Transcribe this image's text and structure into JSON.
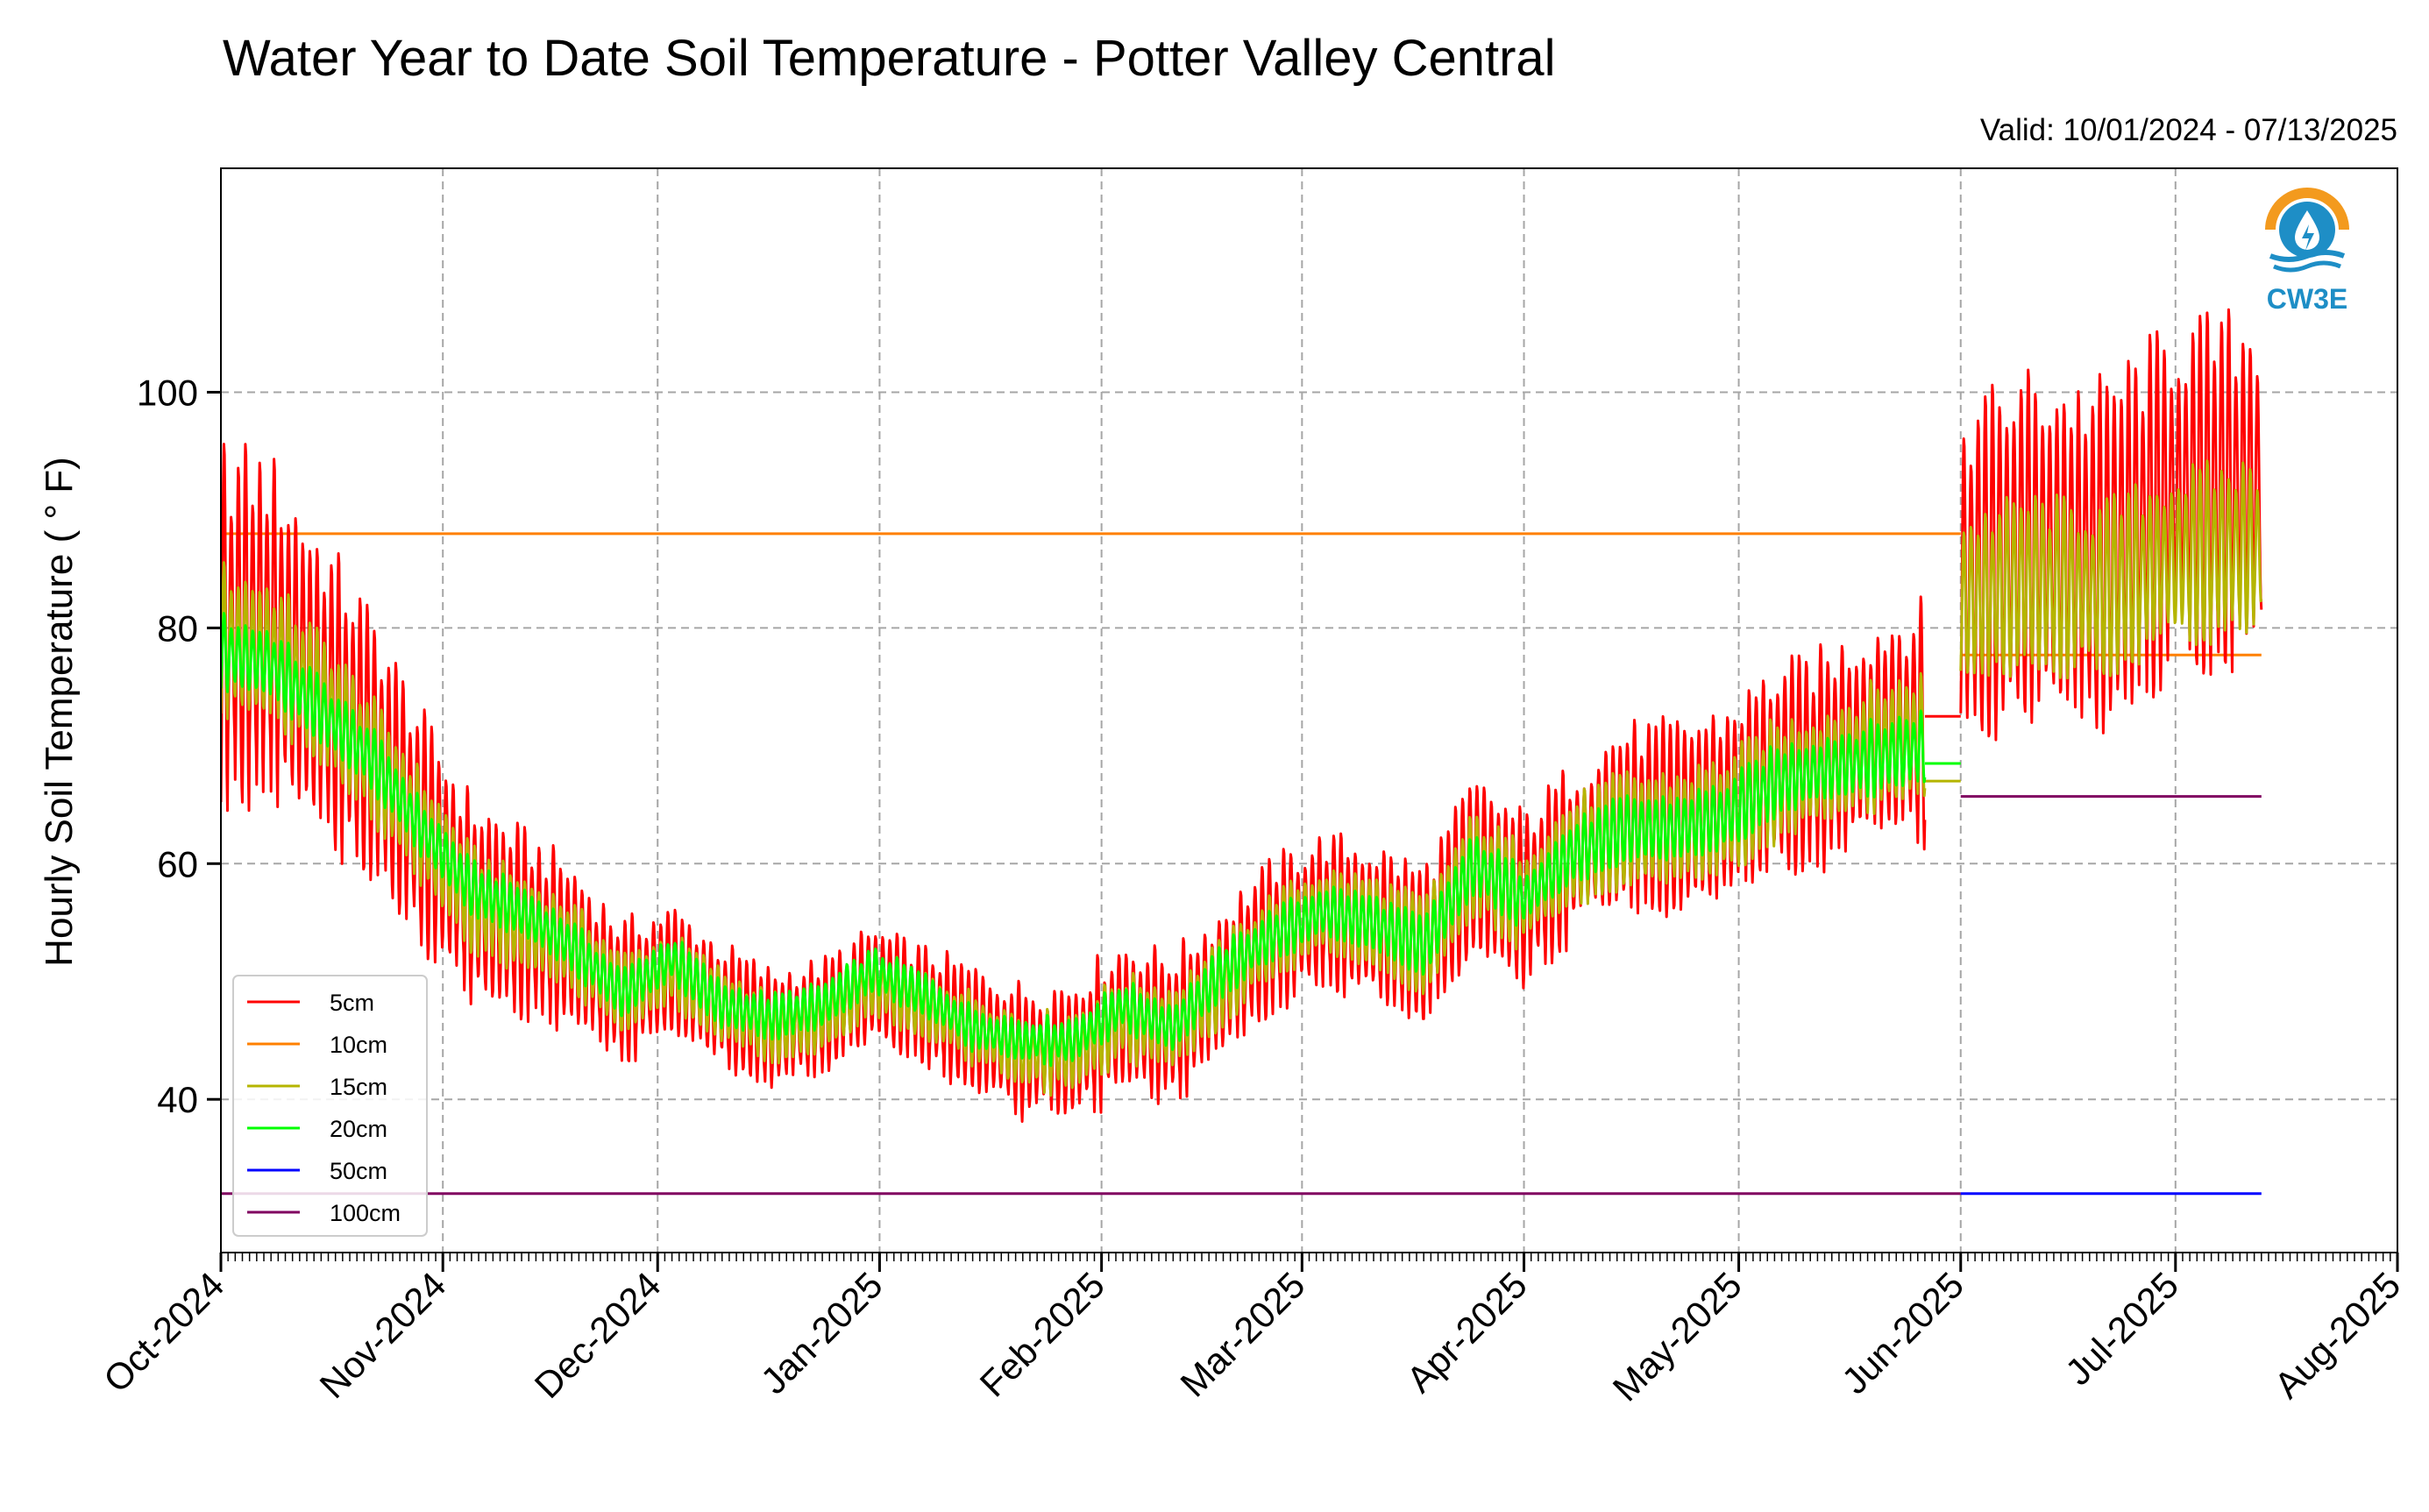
{
  "chart_data": {
    "type": "line",
    "title": "Water Year to Date Soil Temperature - Potter Valley Central",
    "subtitle": "Valid: 10/01/2024 - 07/13/2025",
    "xlabel": "",
    "ylabel": "Hourly Soil Temperature ( ° F)",
    "xlim": [
      "2024-10-01",
      "2025-08-01"
    ],
    "ylim": [
      27,
      119
    ],
    "yticks": [
      40,
      60,
      80,
      100
    ],
    "xticks": [
      "2024-10-01",
      "2024-11-01",
      "2024-12-01",
      "2025-01-01",
      "2025-02-01",
      "2025-03-01",
      "2025-04-01",
      "2025-05-01",
      "2025-06-01",
      "2025-07-01",
      "2025-08-01"
    ],
    "xtick_labels": [
      "Oct-2024",
      "Nov-2024",
      "Dec-2024",
      "Jan-2025",
      "Feb-2025",
      "Mar-2025",
      "Apr-2025",
      "May-2025",
      "Jun-2025",
      "Jul-2025",
      "Aug-2025"
    ],
    "grid": true,
    "legend_position": "lower-left",
    "series": [
      {
        "name": "5cm",
        "color": "#ff0000",
        "kind": "diurnal",
        "mean_points": [
          [
            "2024-10-01",
            80
          ],
          [
            "2024-10-08",
            80
          ],
          [
            "2024-10-15",
            75
          ],
          [
            "2024-10-22",
            70
          ],
          [
            "2024-10-29",
            63
          ],
          [
            "2024-11-05",
            57
          ],
          [
            "2024-11-12",
            55
          ],
          [
            "2024-11-19",
            53
          ],
          [
            "2024-11-26",
            49
          ],
          [
            "2024-12-03",
            51
          ],
          [
            "2024-12-10",
            48
          ],
          [
            "2024-12-17",
            46
          ],
          [
            "2024-12-24",
            47
          ],
          [
            "2024-12-31",
            50
          ],
          [
            "2025-01-07",
            48
          ],
          [
            "2025-01-14",
            46
          ],
          [
            "2025-01-21",
            44
          ],
          [
            "2025-01-28",
            44
          ],
          [
            "2025-02-04",
            47
          ],
          [
            "2025-02-11",
            46
          ],
          [
            "2025-02-18",
            50
          ],
          [
            "2025-02-25",
            54
          ],
          [
            "2025-03-04",
            56
          ],
          [
            "2025-03-11",
            55
          ],
          [
            "2025-03-18",
            53
          ],
          [
            "2025-03-25",
            60
          ],
          [
            "2025-04-01",
            57
          ],
          [
            "2025-04-08",
            61
          ],
          [
            "2025-04-15",
            64
          ],
          [
            "2025-04-22",
            64
          ],
          [
            "2025-04-29",
            65
          ],
          [
            "2025-05-06",
            68
          ],
          [
            "2025-05-13",
            69
          ],
          [
            "2025-05-20",
            71
          ],
          [
            "2025-05-27",
            72
          ]
        ],
        "amp_points": [
          [
            "2024-10-01",
            17
          ],
          [
            "2024-10-15",
            14
          ],
          [
            "2024-11-01",
            10
          ],
          [
            "2024-12-01",
            6
          ],
          [
            "2025-01-01",
            5
          ],
          [
            "2025-02-01",
            7
          ],
          [
            "2025-03-01",
            7
          ],
          [
            "2025-04-01",
            8
          ],
          [
            "2025-05-01",
            9
          ],
          [
            "2025-05-27",
            11
          ]
        ],
        "end": "2025-05-27",
        "segment2": {
          "start": "2025-06-01",
          "end": "2025-07-13",
          "mean_points": [
            [
              "2025-06-01",
              84
            ],
            [
              "2025-06-10",
              87
            ],
            [
              "2025-06-20",
              86
            ],
            [
              "2025-07-01",
              91
            ],
            [
              "2025-07-13",
              92
            ]
          ],
          "amp": 16
        },
        "flat_segments": [
          {
            "start": "2025-05-27",
            "end": "2025-06-01",
            "value": 72.5
          }
        ]
      },
      {
        "name": "10cm",
        "color": "#ff8000",
        "kind": "flat",
        "flat_segments": [
          {
            "start": "2024-10-01",
            "end": "2025-06-01",
            "value": 88
          },
          {
            "start": "2025-06-01",
            "end": "2025-07-13",
            "value": 77.7
          }
        ]
      },
      {
        "name": "15cm",
        "color": "#b5b500",
        "kind": "diurnal",
        "mean_points": [
          [
            "2024-10-01",
            79
          ],
          [
            "2024-10-08",
            78
          ],
          [
            "2024-10-15",
            74
          ],
          [
            "2024-10-22",
            69
          ],
          [
            "2024-10-29",
            63
          ],
          [
            "2024-11-05",
            57
          ],
          [
            "2024-11-12",
            55
          ],
          [
            "2024-11-19",
            53
          ],
          [
            "2024-11-26",
            49
          ],
          [
            "2024-12-03",
            51
          ],
          [
            "2024-12-10",
            48
          ],
          [
            "2024-12-17",
            46
          ],
          [
            "2024-12-24",
            47
          ],
          [
            "2024-12-31",
            50
          ],
          [
            "2025-01-07",
            48
          ],
          [
            "2025-01-14",
            46
          ],
          [
            "2025-01-21",
            44
          ],
          [
            "2025-01-28",
            44
          ],
          [
            "2025-02-04",
            47
          ],
          [
            "2025-02-11",
            46
          ],
          [
            "2025-02-18",
            50
          ],
          [
            "2025-02-25",
            54
          ],
          [
            "2025-03-04",
            56
          ],
          [
            "2025-03-11",
            55
          ],
          [
            "2025-03-18",
            53
          ],
          [
            "2025-03-25",
            60
          ],
          [
            "2025-04-01",
            57
          ],
          [
            "2025-04-08",
            61
          ],
          [
            "2025-04-15",
            63
          ],
          [
            "2025-04-22",
            63
          ],
          [
            "2025-04-29",
            64
          ],
          [
            "2025-05-06",
            67
          ],
          [
            "2025-05-13",
            68
          ],
          [
            "2025-05-20",
            70
          ],
          [
            "2025-05-27",
            71
          ]
        ],
        "amp_points": [
          [
            "2024-10-01",
            7
          ],
          [
            "2024-11-01",
            5
          ],
          [
            "2024-12-01",
            3.5
          ],
          [
            "2025-01-01",
            3
          ],
          [
            "2025-02-01",
            4
          ],
          [
            "2025-03-01",
            4
          ],
          [
            "2025-04-01",
            5
          ],
          [
            "2025-05-01",
            5.5
          ],
          [
            "2025-05-27",
            6
          ]
        ],
        "end": "2025-05-27",
        "segment2": {
          "start": "2025-06-01",
          "end": "2025-07-13",
          "mean_points": [
            [
              "2025-06-01",
              82
            ],
            [
              "2025-06-10",
              84
            ],
            [
              "2025-06-20",
              83
            ],
            [
              "2025-07-01",
              86
            ],
            [
              "2025-07-13",
              87
            ]
          ],
          "amp": 8
        },
        "flat_segments": [
          {
            "start": "2025-05-27",
            "end": "2025-06-01",
            "value": 67
          }
        ]
      },
      {
        "name": "20cm",
        "color": "#00ff00",
        "kind": "diurnal",
        "mean_points": [
          [
            "2024-10-01",
            78
          ],
          [
            "2024-10-08",
            77
          ],
          [
            "2024-10-15",
            73
          ],
          [
            "2024-10-22",
            69
          ],
          [
            "2024-10-29",
            63
          ],
          [
            "2024-11-05",
            58
          ],
          [
            "2024-11-12",
            56
          ],
          [
            "2024-11-19",
            53
          ],
          [
            "2024-11-26",
            49
          ],
          [
            "2024-12-03",
            52
          ],
          [
            "2024-12-10",
            48
          ],
          [
            "2024-12-17",
            47
          ],
          [
            "2024-12-24",
            48
          ],
          [
            "2024-12-31",
            51
          ],
          [
            "2025-01-07",
            49
          ],
          [
            "2025-01-14",
            46
          ],
          [
            "2025-01-21",
            45
          ],
          [
            "2025-01-28",
            45
          ],
          [
            "2025-02-04",
            48
          ],
          [
            "2025-02-11",
            46
          ],
          [
            "2025-02-18",
            51
          ],
          [
            "2025-02-25",
            54
          ],
          [
            "2025-03-04",
            56
          ],
          [
            "2025-03-11",
            55
          ],
          [
            "2025-03-18",
            53
          ],
          [
            "2025-03-25",
            60
          ],
          [
            "2025-04-01",
            57
          ],
          [
            "2025-04-08",
            61
          ],
          [
            "2025-04-15",
            63
          ],
          [
            "2025-04-22",
            63
          ],
          [
            "2025-04-29",
            64
          ],
          [
            "2025-05-06",
            67
          ],
          [
            "2025-05-13",
            68
          ],
          [
            "2025-05-20",
            69
          ],
          [
            "2025-05-27",
            70
          ]
        ],
        "amp_points": [
          [
            "2024-10-01",
            3.5
          ],
          [
            "2024-11-01",
            2.5
          ],
          [
            "2025-01-01",
            2
          ],
          [
            "2025-03-01",
            2.5
          ],
          [
            "2025-05-27",
            3.5
          ]
        ],
        "end": "2025-05-27",
        "flat_segments": [
          {
            "start": "2025-05-27",
            "end": "2025-06-01",
            "value": 68.5
          }
        ]
      },
      {
        "name": "50cm",
        "color": "#0000ff",
        "kind": "flat",
        "flat_segments": [
          {
            "start": "2025-06-01",
            "end": "2025-07-13",
            "value": 32
          }
        ]
      },
      {
        "name": "100cm",
        "color": "#800060",
        "kind": "flat",
        "flat_segments": [
          {
            "start": "2024-10-01",
            "end": "2025-06-01",
            "value": 32
          },
          {
            "start": "2025-06-01",
            "end": "2025-07-13",
            "value": 65.7
          }
        ]
      }
    ]
  },
  "logo": {
    "text": "CW3E",
    "icon": "water-drop-sun-logo-icon",
    "colors": {
      "sun": "#f39a1e",
      "water": "#1e8ec6"
    }
  }
}
